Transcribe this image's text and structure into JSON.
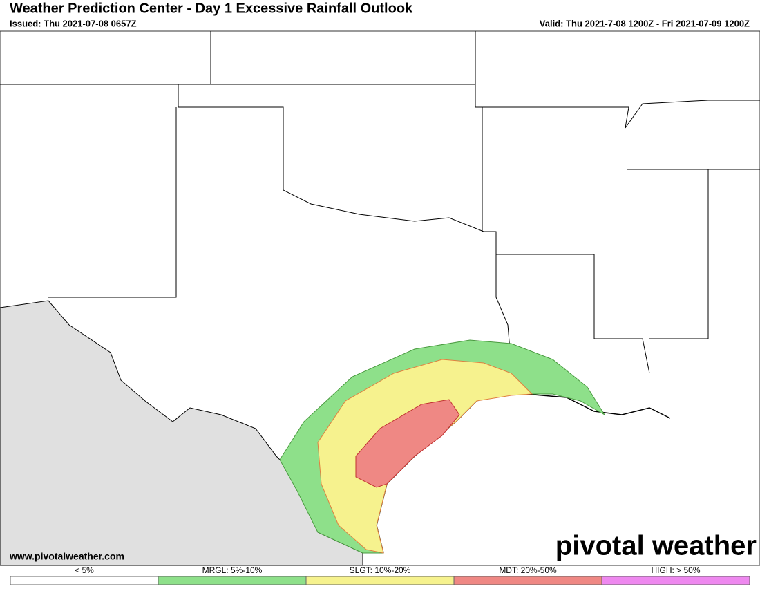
{
  "header": {
    "title": "Weather Prediction Center - Day 1 Excessive Rainfall Outlook",
    "issued": "Issued: Thu 2021-07-08 0657Z",
    "valid": "Valid: Thu 2021-7-08 1200Z - Fri 2021-07-09 1200Z"
  },
  "footer": {
    "website": "www.pivotalweather.com",
    "logo": "pivotal weather"
  },
  "legend": [
    {
      "label": "< 5%",
      "color": "#ffffff"
    },
    {
      "label": "MRGL: 5%-10%",
      "color": "#8ee08a"
    },
    {
      "label": "SLGT: 10%-20%",
      "color": "#f6f28e"
    },
    {
      "label": "MDT: 20%-50%",
      "color": "#ef8884"
    },
    {
      "label": "HIGH: > 50%",
      "color": "#ee88ef"
    }
  ]
}
